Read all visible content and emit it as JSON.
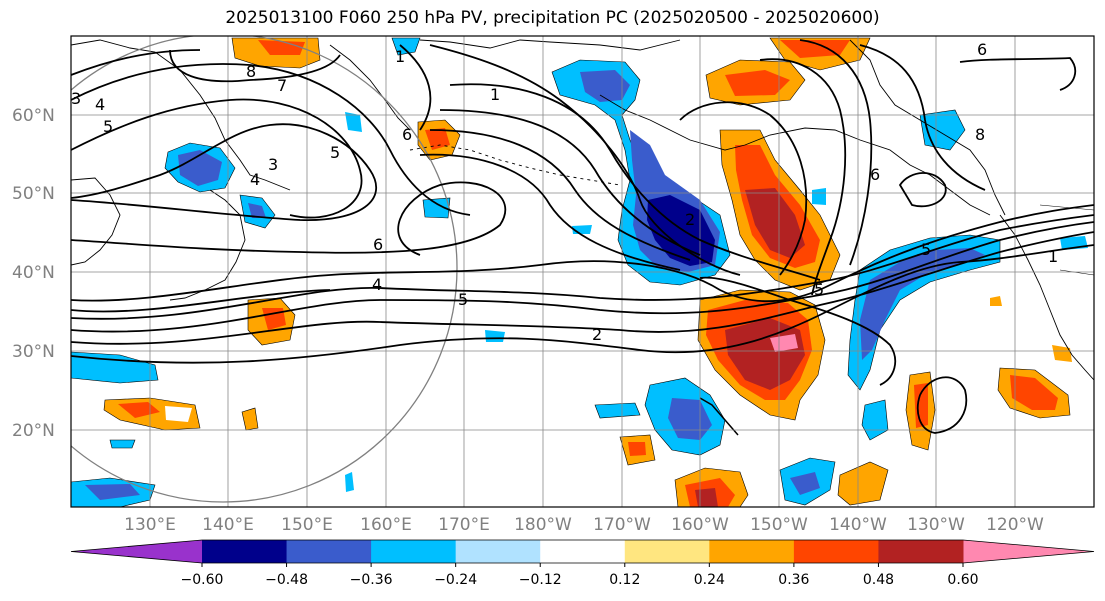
{
  "title": "2025013100 F060 250 hPa PV, precipitation PC (2025020500 - 2025020600)",
  "lat_labels": [
    "60°N",
    "50°N",
    "40°N",
    "30°N",
    "20°N"
  ],
  "lon_labels": [
    "130°E",
    "140°E",
    "150°E",
    "160°E",
    "170°E",
    "180°W",
    "170°W",
    "160°W",
    "150°W",
    "140°W",
    "130°W",
    "120°W"
  ],
  "colorbar": {
    "ticks": [
      "−0.60",
      "−0.48",
      "−0.36",
      "−0.24",
      "−0.12",
      "0.12",
      "0.24",
      "0.36",
      "0.48",
      "0.60"
    ],
    "colors": [
      "#9932cc",
      "#00008b",
      "#3a5ccc",
      "#00bfff",
      "#b0e2ff",
      "#ffffff",
      "#ffe680",
      "#ffa500",
      "#ff4500",
      "#b22222",
      "#ff88b0"
    ]
  },
  "contour_labels": [
    "8",
    "7",
    "3",
    "4",
    "5",
    "3",
    "4",
    "5",
    "6",
    "1",
    "6",
    "4",
    "5",
    "2",
    "1",
    "2",
    "5",
    "6",
    "1",
    "5",
    "8",
    "6"
  ]
}
